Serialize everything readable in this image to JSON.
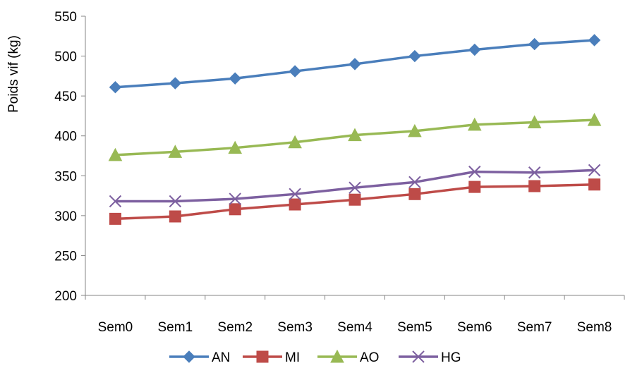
{
  "chart_data": {
    "type": "line",
    "title": "",
    "xlabel": "",
    "ylabel": "Poids  vif (kg)",
    "ylim": [
      200,
      550
    ],
    "yticks": [
      200,
      250,
      300,
      350,
      400,
      450,
      500,
      550
    ],
    "grid": false,
    "legend_position": "bottom",
    "categories": [
      "Sem0",
      "Sem1",
      "Sem2",
      "Sem3",
      "Sem4",
      "Sem5",
      "Sem6",
      "Sem7",
      "Sem8"
    ],
    "series": [
      {
        "name": "AN",
        "color": "#4a7ebb",
        "marker": "diamond",
        "values": [
          461,
          466,
          472,
          481,
          490,
          500,
          508,
          515,
          520
        ]
      },
      {
        "name": "MI",
        "color": "#be4b48",
        "marker": "square",
        "values": [
          296,
          299,
          308,
          314,
          320,
          327,
          336,
          337,
          339
        ]
      },
      {
        "name": "AO",
        "color": "#98b954",
        "marker": "triangle",
        "values": [
          376,
          380,
          385,
          392,
          401,
          406,
          414,
          417,
          420
        ]
      },
      {
        "name": "HG",
        "color": "#7d60a0",
        "marker": "x",
        "values": [
          318,
          318,
          321,
          327,
          335,
          342,
          355,
          354,
          357
        ]
      }
    ]
  }
}
